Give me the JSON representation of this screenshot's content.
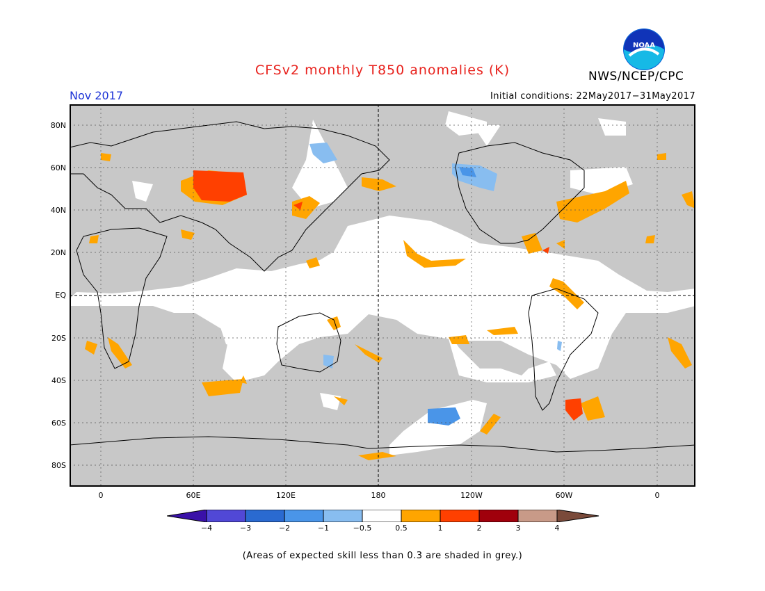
{
  "header": {
    "title": "CFSv2 monthly T850 anomalies (K)",
    "agency": "NWS/NCEP/CPC",
    "valid_month": "Nov 2017",
    "initial_conditions": "Initial conditions: 22May2017−31May2017"
  },
  "logo": {
    "text": "NOAA"
  },
  "map": {
    "lat_labels": [
      "80N",
      "60N",
      "40N",
      "20N",
      "EQ",
      "20S",
      "40S",
      "60S",
      "80S"
    ],
    "lon_labels": [
      "0",
      "60E",
      "120E",
      "180",
      "120W",
      "60W",
      "0"
    ]
  },
  "colorbar": {
    "labels": [
      "−4",
      "−3",
      "−2",
      "−1",
      "−0.5",
      "0.5",
      "1",
      "2",
      "3",
      "4"
    ],
    "colors": [
      "#3a11a8",
      "#5148d6",
      "#2a6ad0",
      "#4a95e8",
      "#88bdf0",
      "#ffffff",
      "#ffa500",
      "#ff4000",
      "#a0000c",
      "#c89a88",
      "#7a4a3a"
    ]
  },
  "caption": "(Areas of expected skill less than 0.3 are shaded in grey.)"
}
